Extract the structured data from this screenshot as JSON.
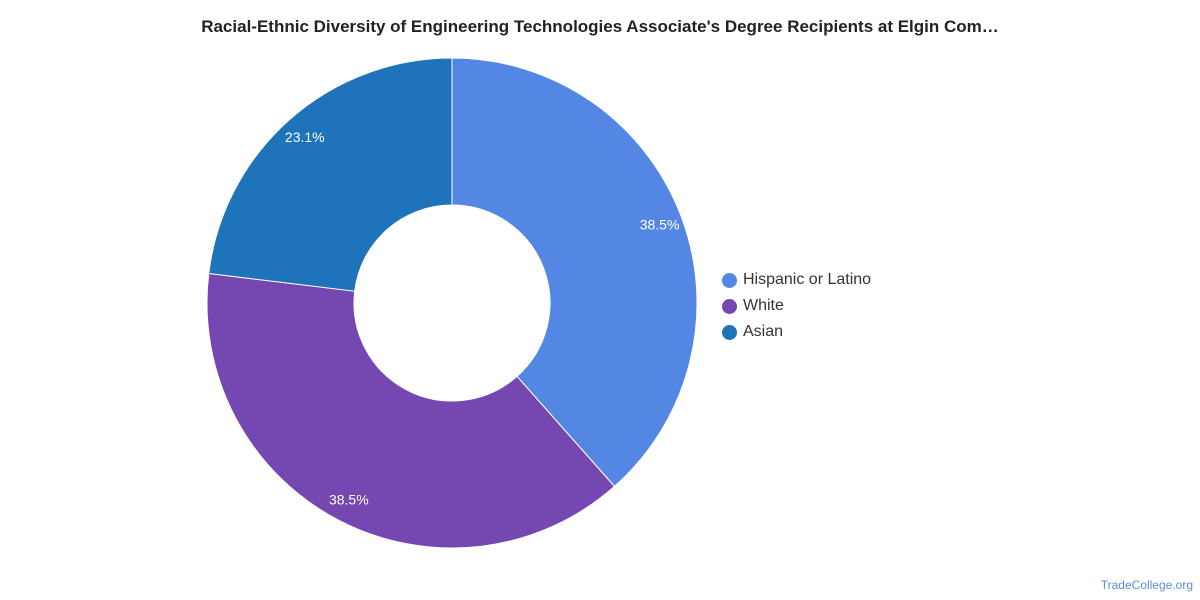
{
  "title": "Racial-Ethnic Diversity of Engineering Technologies Associate's Degree Recipients at Elgin Com…",
  "credit": "TradeCollege.org",
  "chart_data": {
    "type": "pie",
    "donut": true,
    "title": "Racial-Ethnic Diversity of Engineering Technologies Associate's Degree Recipients at Elgin Com…",
    "categories": [
      "Hispanic or Latino",
      "White",
      "Asian"
    ],
    "values": [
      38.5,
      38.5,
      23.1
    ],
    "labels": [
      "38.5%",
      "38.5%",
      "23.1%"
    ],
    "colors": [
      "#5486e3",
      "#7547b0",
      "#1f73ba"
    ],
    "legend_position": "right"
  }
}
